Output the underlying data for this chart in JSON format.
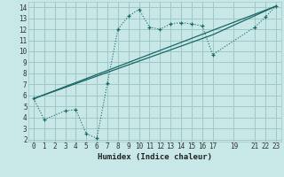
{
  "xlabel": "Humidex (Indice chaleur)",
  "bg_color": "#c8e8e8",
  "grid_color": "#a0c8c8",
  "line_color": "#1a6666",
  "line1_x": [
    0,
    1,
    3,
    4,
    5,
    6,
    7,
    8,
    9,
    10,
    11,
    12,
    13,
    14,
    15,
    16,
    17,
    21,
    22,
    23
  ],
  "line1_y": [
    5.7,
    3.8,
    4.6,
    4.7,
    2.5,
    2.1,
    7.1,
    12.0,
    13.2,
    13.8,
    12.2,
    12.0,
    12.5,
    12.6,
    12.5,
    12.3,
    9.7,
    12.2,
    13.1,
    14.1
  ],
  "line2_x": [
    0,
    23
  ],
  "line2_y": [
    5.7,
    14.1
  ],
  "line3_x": [
    0,
    17,
    23
  ],
  "line3_y": [
    5.7,
    11.5,
    14.1
  ],
  "xlim": [
    -0.5,
    23.5
  ],
  "ylim": [
    1.8,
    14.5
  ],
  "xticks": [
    0,
    1,
    2,
    3,
    4,
    5,
    6,
    7,
    8,
    9,
    10,
    11,
    12,
    13,
    14,
    15,
    16,
    17,
    19,
    21,
    22,
    23
  ],
  "yticks": [
    2,
    3,
    4,
    5,
    6,
    7,
    8,
    9,
    10,
    11,
    12,
    13,
    14
  ],
  "tick_fontsize": 5.5,
  "xlabel_fontsize": 6.5
}
